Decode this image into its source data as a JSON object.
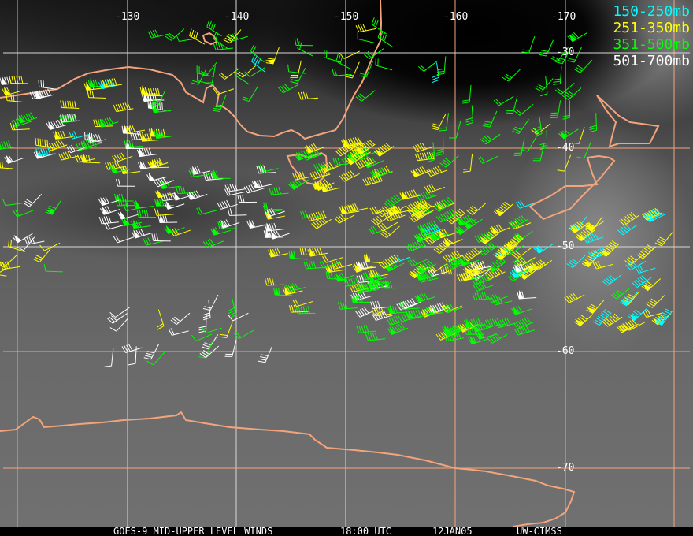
{
  "map": {
    "colors": {
      "coast": "#f4a47c",
      "grid_orange": "#f4a47c",
      "grid_white": "#d8d8d8"
    },
    "longitude_labels": [
      "-130",
      "-140",
      "-150",
      "-160",
      "-170"
    ],
    "latitude_labels": [
      "-30",
      "-40",
      "-50",
      "-60",
      "-70"
    ]
  },
  "legend": [
    {
      "label": "150-250mb",
      "color": "#00ffff"
    },
    {
      "label": "251-350mb",
      "color": "#ffff00"
    },
    {
      "label": "351-500mb",
      "color": "#00ff00"
    },
    {
      "label": "501-700mb",
      "color": "#ffffff"
    }
  ],
  "caption": {
    "product": "GOES-9 MID-UPPER LEVEL WINDS",
    "time": "18:00 UTC",
    "date": "12JAN05",
    "source": "UW-CIMSS"
  }
}
